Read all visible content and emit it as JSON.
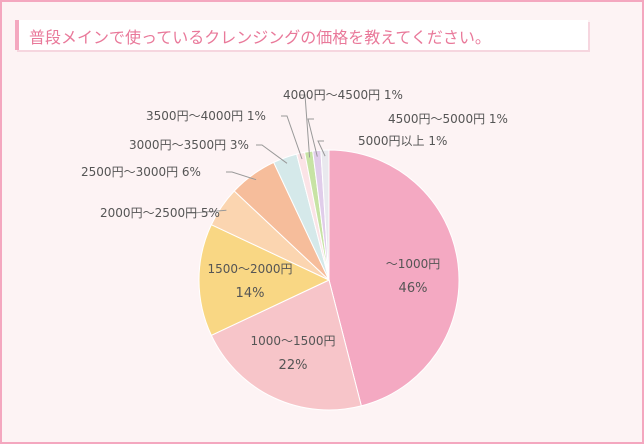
{
  "title": "普段メインで使っているクレンジングの価格を教えてください。",
  "chart_data": {
    "type": "pie",
    "title": "普段メインで使っているクレンジングの価格を教えてください。",
    "slices": [
      {
        "label": "～1000円",
        "value": 46,
        "pct": "46%",
        "color": "#f4a9c2"
      },
      {
        "label": "1000～1500円",
        "value": 22,
        "pct": "22%",
        "color": "#f7c5c9"
      },
      {
        "label": "1500～2000円",
        "value": 14,
        "pct": "14%",
        "color": "#f9d784"
      },
      {
        "label": "2000円～2500円",
        "value": 5,
        "pct": "5%",
        "color": "#fbd5b0"
      },
      {
        "label": "2500円～3000円",
        "value": 6,
        "pct": "6%",
        "color": "#f6bd9b"
      },
      {
        "label": "3000円～3500円",
        "value": 3,
        "pct": "3%",
        "color": "#d5e9ea"
      },
      {
        "label": "3500円～4000円",
        "value": 1,
        "pct": "1%",
        "color": "#fbe3e6"
      },
      {
        "label": "4000円～4500円",
        "value": 1,
        "pct": "1%",
        "color": "#c7e3a4"
      },
      {
        "label": "4500円～5000円",
        "value": 1,
        "pct": "1%",
        "color": "#e0cdea"
      },
      {
        "label": "5000円以上",
        "value": 1,
        "pct": "1%",
        "color": "#e9e9ee"
      }
    ]
  }
}
